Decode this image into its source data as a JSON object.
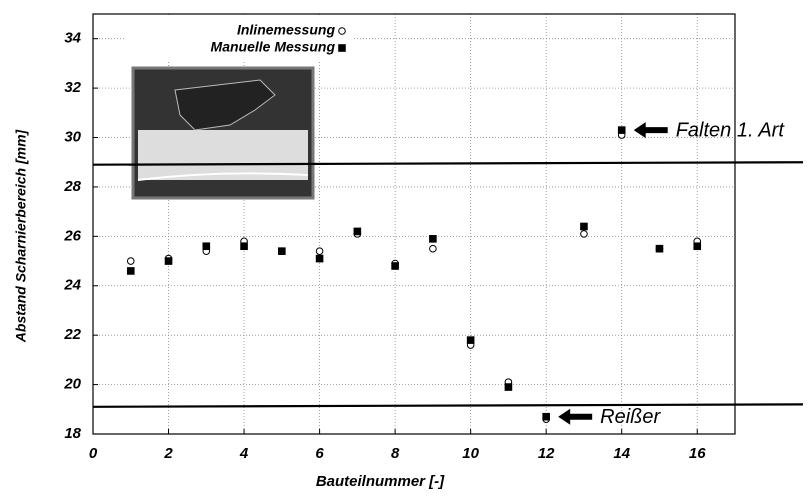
{
  "chart_data": {
    "type": "scatter",
    "x_label": "Bauteilnummer [-]",
    "y_label": "Abstand Scharnierbereich [mm]",
    "x": [
      1,
      2,
      3,
      4,
      5,
      6,
      7,
      8,
      9,
      10,
      11,
      12,
      13,
      14,
      15,
      16
    ],
    "series": [
      {
        "name": "Inlinemessung",
        "marker": "circle",
        "color": "#000000",
        "values": [
          25.0,
          25.1,
          25.4,
          25.8,
          25.4,
          25.4,
          26.1,
          24.9,
          25.5,
          21.6,
          20.1,
          18.6,
          26.1,
          30.1,
          25.5,
          25.8
        ]
      },
      {
        "name": "Manuelle Messung",
        "marker": "square",
        "color": "#000000",
        "values": [
          24.6,
          25.0,
          25.6,
          25.6,
          25.4,
          25.1,
          26.2,
          24.8,
          25.9,
          21.8,
          19.9,
          18.7,
          26.4,
          30.3,
          25.5,
          25.6
        ]
      }
    ],
    "xlim": [
      0,
      17
    ],
    "xticks": [
      0,
      2,
      4,
      6,
      8,
      10,
      12,
      14,
      16
    ],
    "ylim": [
      18,
      35
    ],
    "yticks": [
      18,
      20,
      22,
      24,
      26,
      28,
      30,
      32,
      34
    ],
    "grid": true,
    "reference_lines": [
      {
        "values": [
          28.9,
          29.0
        ]
      },
      {
        "values": [
          19.1,
          19.2
        ]
      }
    ],
    "annotations": [
      {
        "text": "Falten 1. Art",
        "x": 14,
        "y": 30.3
      },
      {
        "text": "Reißer",
        "x": 12,
        "y": 18.7
      }
    ]
  }
}
